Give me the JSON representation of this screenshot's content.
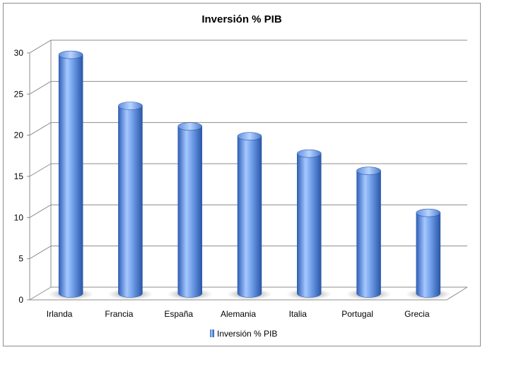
{
  "chart_data": {
    "type": "bar",
    "title": "Inversión % PIB",
    "xlabel": "",
    "ylabel": "",
    "categories": [
      "Irlanda",
      "Francia",
      "España",
      "Alemania",
      "Italia",
      "Portugal",
      "Grecia"
    ],
    "series": [
      {
        "name": "Inversión % PIB",
        "values": [
          29,
          22.8,
          20.3,
          19.1,
          17,
          14.9,
          9.8
        ]
      }
    ],
    "ylim": [
      0,
      30
    ],
    "yticks": [
      "0",
      "5",
      "10",
      "15",
      "20",
      "25",
      "30"
    ],
    "grid": true,
    "legend": "bottom",
    "colors": {
      "bar_light": "#a6c8ff",
      "bar_mid": "#5f8fe0",
      "bar_dark": "#2f5fb8",
      "grid": "#8c8c8c"
    }
  }
}
